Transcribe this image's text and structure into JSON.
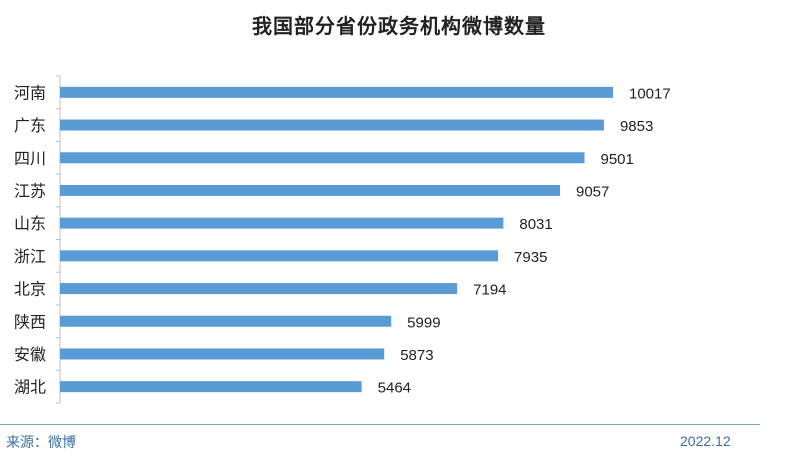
{
  "chart_data": {
    "type": "bar",
    "orientation": "horizontal",
    "title": "我国部分省份政务机构微博数量",
    "categories": [
      "河南",
      "广东",
      "四川",
      "江苏",
      "山东",
      "浙江",
      "北京",
      "陕西",
      "安徽",
      "湖北"
    ],
    "values": [
      10017,
      9853,
      9501,
      9057,
      8031,
      7935,
      7194,
      5999,
      5873,
      5464
    ],
    "xlim": [
      0,
      10017
    ],
    "grid": false,
    "bar_color": "#5b9bd5"
  },
  "footer": {
    "source": "来源：微博",
    "date": "2022.12"
  }
}
